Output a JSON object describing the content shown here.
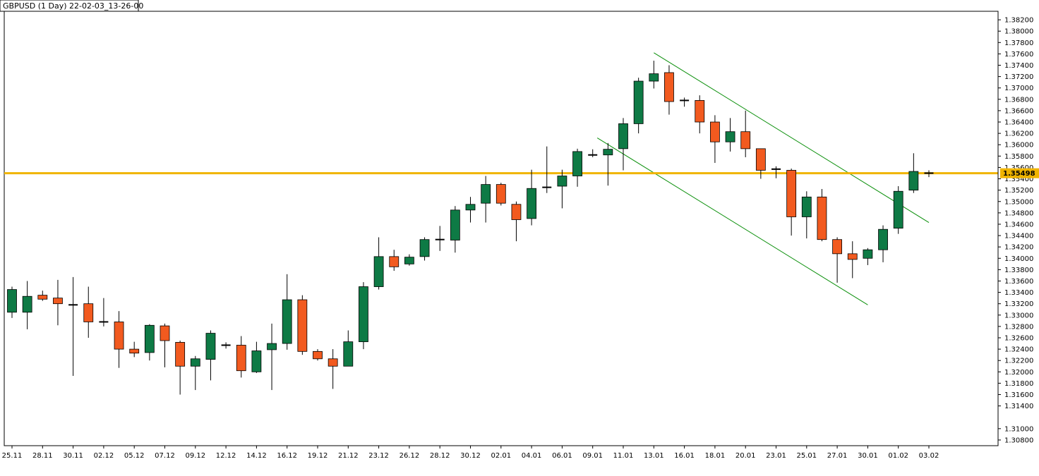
{
  "window": {
    "title": "GBPUSD (1 Day) 22-02-03_13-26-00"
  },
  "colors": {
    "bull": "#0e7a45",
    "bear": "#f25a1f",
    "wick": "#000000",
    "level_line": "#f0b400",
    "trend_line": "#0a8f0a",
    "badge_bg": "#f0b400",
    "frame": "#000000",
    "background": "#ffffff"
  },
  "chart_data": {
    "type": "candlestick",
    "title": "GBPUSD (1 Day) 22-02-03_13-26-00",
    "ylim": [
      1.307,
      1.3835
    ],
    "y_ticks": [
      "1.38200",
      "1.38000",
      "1.37800",
      "1.37600",
      "1.37400",
      "1.37200",
      "1.37000",
      "1.36800",
      "1.36600",
      "1.36400",
      "1.36200",
      "1.36000",
      "1.35800",
      "1.35600",
      "1.35400",
      "1.35200",
      "1.35000",
      "1.34800",
      "1.34600",
      "1.34400",
      "1.34200",
      "1.34000",
      "1.33800",
      "1.33600",
      "1.33400",
      "1.33200",
      "1.33000",
      "1.32800",
      "1.32600",
      "1.32400",
      "1.32200",
      "1.32000",
      "1.31800",
      "1.31600",
      "1.31400",
      "1.31000",
      "1.30800"
    ],
    "x_ticks": [
      {
        "label": "25.11",
        "index": 0
      },
      {
        "label": "28.11",
        "index": 2
      },
      {
        "label": "30.11",
        "index": 4
      },
      {
        "label": "02.12",
        "index": 6
      },
      {
        "label": "05.12",
        "index": 8
      },
      {
        "label": "07.12",
        "index": 10
      },
      {
        "label": "09.12",
        "index": 12
      },
      {
        "label": "12.12",
        "index": 14
      },
      {
        "label": "14.12",
        "index": 16
      },
      {
        "label": "16.12",
        "index": 18
      },
      {
        "label": "19.12",
        "index": 20
      },
      {
        "label": "21.12",
        "index": 22
      },
      {
        "label": "23.12",
        "index": 24
      },
      {
        "label": "26.12",
        "index": 26
      },
      {
        "label": "28.12",
        "index": 28
      },
      {
        "label": "30.12",
        "index": 30
      },
      {
        "label": "02.01",
        "index": 32
      },
      {
        "label": "04.01",
        "index": 34
      },
      {
        "label": "06.01",
        "index": 36
      },
      {
        "label": "09.01",
        "index": 38
      },
      {
        "label": "11.01",
        "index": 40
      },
      {
        "label": "13.01",
        "index": 42
      },
      {
        "label": "16.01",
        "index": 44
      },
      {
        "label": "18.01",
        "index": 46
      },
      {
        "label": "20.01",
        "index": 48
      },
      {
        "label": "23.01",
        "index": 50
      },
      {
        "label": "25.01",
        "index": 52
      },
      {
        "label": "27.01",
        "index": 54
      },
      {
        "label": "30.01",
        "index": 56
      },
      {
        "label": "01.02",
        "index": 58
      },
      {
        "label": "03.02",
        "index": 60
      }
    ],
    "candles": [
      {
        "o": 1.3305,
        "h": 1.335,
        "l": 1.3295,
        "c": 1.3345
      },
      {
        "o": 1.3305,
        "h": 1.336,
        "l": 1.3275,
        "c": 1.3333
      },
      {
        "o": 1.3335,
        "h": 1.3343,
        "l": 1.3325,
        "c": 1.3328
      },
      {
        "o": 1.333,
        "h": 1.3362,
        "l": 1.3282,
        "c": 1.332
      },
      {
        "o": 1.3318,
        "h": 1.3367,
        "l": 1.3193,
        "c": 1.3318
      },
      {
        "o": 1.332,
        "h": 1.335,
        "l": 1.326,
        "c": 1.3288
      },
      {
        "o": 1.3288,
        "h": 1.333,
        "l": 1.328,
        "c": 1.3288
      },
      {
        "o": 1.3288,
        "h": 1.3307,
        "l": 1.3207,
        "c": 1.324
      },
      {
        "o": 1.324,
        "h": 1.3253,
        "l": 1.3226,
        "c": 1.3233
      },
      {
        "o": 1.3234,
        "h": 1.3284,
        "l": 1.322,
        "c": 1.3282
      },
      {
        "o": 1.3281,
        "h": 1.3285,
        "l": 1.3208,
        "c": 1.3255
      },
      {
        "o": 1.3252,
        "h": 1.3255,
        "l": 1.316,
        "c": 1.321
      },
      {
        "o": 1.321,
        "h": 1.3228,
        "l": 1.3168,
        "c": 1.3223
      },
      {
        "o": 1.3222,
        "h": 1.3273,
        "l": 1.3185,
        "c": 1.3268
      },
      {
        "o": 1.3247,
        "h": 1.3252,
        "l": 1.3241,
        "c": 1.3247
      },
      {
        "o": 1.3247,
        "h": 1.3263,
        "l": 1.319,
        "c": 1.3202
      },
      {
        "o": 1.32,
        "h": 1.3253,
        "l": 1.3198,
        "c": 1.3237
      },
      {
        "o": 1.3239,
        "h": 1.3285,
        "l": 1.3168,
        "c": 1.325
      },
      {
        "o": 1.325,
        "h": 1.3372,
        "l": 1.3239,
        "c": 1.3327
      },
      {
        "o": 1.3327,
        "h": 1.3335,
        "l": 1.323,
        "c": 1.3236
      },
      {
        "o": 1.3236,
        "h": 1.324,
        "l": 1.322,
        "c": 1.3223
      },
      {
        "o": 1.3223,
        "h": 1.324,
        "l": 1.317,
        "c": 1.321
      },
      {
        "o": 1.321,
        "h": 1.3273,
        "l": 1.321,
        "c": 1.3253
      },
      {
        "o": 1.3253,
        "h": 1.3358,
        "l": 1.324,
        "c": 1.335
      },
      {
        "o": 1.335,
        "h": 1.3437,
        "l": 1.3345,
        "c": 1.3403
      },
      {
        "o": 1.3403,
        "h": 1.3415,
        "l": 1.3378,
        "c": 1.3385
      },
      {
        "o": 1.339,
        "h": 1.3407,
        "l": 1.3387,
        "c": 1.3402
      },
      {
        "o": 1.3403,
        "h": 1.3437,
        "l": 1.3396,
        "c": 1.3433
      },
      {
        "o": 1.3433,
        "h": 1.3457,
        "l": 1.3413,
        "c": 1.3433
      },
      {
        "o": 1.3432,
        "h": 1.3492,
        "l": 1.341,
        "c": 1.3485
      },
      {
        "o": 1.3485,
        "h": 1.3508,
        "l": 1.3463,
        "c": 1.3495
      },
      {
        "o": 1.3497,
        "h": 1.3545,
        "l": 1.3463,
        "c": 1.353
      },
      {
        "o": 1.353,
        "h": 1.3533,
        "l": 1.3493,
        "c": 1.3497
      },
      {
        "o": 1.3495,
        "h": 1.35,
        "l": 1.343,
        "c": 1.3468
      },
      {
        "o": 1.347,
        "h": 1.3556,
        "l": 1.3458,
        "c": 1.3523
      },
      {
        "o": 1.3525,
        "h": 1.3597,
        "l": 1.3515,
        "c": 1.3525
      },
      {
        "o": 1.3527,
        "h": 1.3556,
        "l": 1.3488,
        "c": 1.3545
      },
      {
        "o": 1.3545,
        "h": 1.3593,
        "l": 1.3526,
        "c": 1.3588
      },
      {
        "o": 1.3582,
        "h": 1.3592,
        "l": 1.3578,
        "c": 1.3582
      },
      {
        "o": 1.3582,
        "h": 1.3603,
        "l": 1.3528,
        "c": 1.3592
      },
      {
        "o": 1.3593,
        "h": 1.3647,
        "l": 1.3555,
        "c": 1.3637
      },
      {
        "o": 1.3637,
        "h": 1.3718,
        "l": 1.362,
        "c": 1.3712
      },
      {
        "o": 1.3712,
        "h": 1.3748,
        "l": 1.3699,
        "c": 1.3725
      },
      {
        "o": 1.3727,
        "h": 1.374,
        "l": 1.3653,
        "c": 1.3676
      },
      {
        "o": 1.3678,
        "h": 1.3683,
        "l": 1.3667,
        "c": 1.3678
      },
      {
        "o": 1.3678,
        "h": 1.3687,
        "l": 1.362,
        "c": 1.364
      },
      {
        "o": 1.364,
        "h": 1.3652,
        "l": 1.3568,
        "c": 1.3605
      },
      {
        "o": 1.3605,
        "h": 1.3647,
        "l": 1.3588,
        "c": 1.3623
      },
      {
        "o": 1.3623,
        "h": 1.366,
        "l": 1.3578,
        "c": 1.3593
      },
      {
        "o": 1.3593,
        "h": 1.3593,
        "l": 1.354,
        "c": 1.3555
      },
      {
        "o": 1.3557,
        "h": 1.3562,
        "l": 1.3541,
        "c": 1.3555
      },
      {
        "o": 1.3555,
        "h": 1.3558,
        "l": 1.344,
        "c": 1.3473
      },
      {
        "o": 1.3473,
        "h": 1.3518,
        "l": 1.3435,
        "c": 1.3508
      },
      {
        "o": 1.3508,
        "h": 1.3522,
        "l": 1.343,
        "c": 1.3433
      },
      {
        "o": 1.3433,
        "h": 1.3437,
        "l": 1.3357,
        "c": 1.3408
      },
      {
        "o": 1.3408,
        "h": 1.343,
        "l": 1.3365,
        "c": 1.3398
      },
      {
        "o": 1.34,
        "h": 1.3418,
        "l": 1.3388,
        "c": 1.3415
      },
      {
        "o": 1.3415,
        "h": 1.3458,
        "l": 1.3393,
        "c": 1.3451
      },
      {
        "o": 1.3453,
        "h": 1.3527,
        "l": 1.3443,
        "c": 1.3518
      },
      {
        "o": 1.352,
        "h": 1.3585,
        "l": 1.3515,
        "c": 1.3553
      },
      {
        "o": 1.355,
        "h": 1.3555,
        "l": 1.3543,
        "c": 1.355
      }
    ],
    "horizontal_level": {
      "value": 1.35498,
      "label": "1.35498"
    },
    "trend_lines": [
      {
        "from": {
          "index": 42.0,
          "price": 1.3762
        },
        "to": {
          "index": 60.0,
          "price": 1.3463
        }
      },
      {
        "from": {
          "index": 38.3,
          "price": 1.3612
        },
        "to": {
          "index": 56.0,
          "price": 1.3318
        }
      }
    ]
  }
}
